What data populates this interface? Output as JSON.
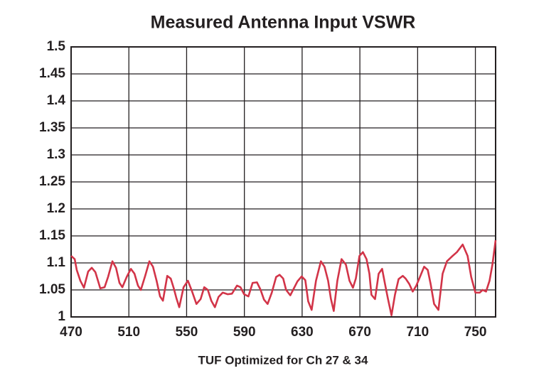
{
  "chart_data": {
    "type": "line",
    "title": "Measured Antenna Input VSWR",
    "x_label": "TUF Optimized for Ch 27 & 34",
    "xlim": [
      470,
      764
    ],
    "xticks": [
      470,
      510,
      550,
      590,
      630,
      670,
      710,
      750
    ],
    "ylim": [
      1,
      1.5
    ],
    "yticks": [
      1,
      1.05,
      1.1,
      1.15,
      1.2,
      1.25,
      1.3,
      1.35,
      1.4,
      1.45,
      1.5
    ],
    "grid": true,
    "series": [
      {
        "name": "VSWR",
        "color": "#d23448",
        "x": [
          470.0,
          472.5,
          473.9,
          476.4,
          478.9,
          481.8,
          484.3,
          486.8,
          490.2,
          493.2,
          495.6,
          498.6,
          501.1,
          503.5,
          505.5,
          508.5,
          511.4,
          513.9,
          516.3,
          518.3,
          521.3,
          524.2,
          526.7,
          529.2,
          531.6,
          533.6,
          536.6,
          539.0,
          541.0,
          543.0,
          544.9,
          547.9,
          550.9,
          553.8,
          556.8,
          559.7,
          562.2,
          564.7,
          567.1,
          569.6,
          572.1,
          575.0,
          578.5,
          581.4,
          584.9,
          587.3,
          589.8,
          592.8,
          595.7,
          598.7,
          601.1,
          603.6,
          606.1,
          609.0,
          612.0,
          614.4,
          616.9,
          618.9,
          621.8,
          624.3,
          626.8,
          629.7,
          632.2,
          634.2,
          636.6,
          639.6,
          643.0,
          645.5,
          648.0,
          649.9,
          651.9,
          654.4,
          657.3,
          660.3,
          662.8,
          665.2,
          667.2,
          669.7,
          672.1,
          674.6,
          676.6,
          678.0,
          680.5,
          683.0,
          685.4,
          687.4,
          689.4,
          691.9,
          694.3,
          696.8,
          699.7,
          701.7,
          704.2,
          706.6,
          709.1,
          711.6,
          714.5,
          717.0,
          719.0,
          721.4,
          724.4,
          727.3,
          730.3,
          733.8,
          737.2,
          741.2,
          744.6,
          747.1,
          750.0,
          753.0,
          755.0,
          757.4,
          759.8,
          761.8,
          764.0
        ],
        "values": [
          1.113,
          1.107,
          1.087,
          1.067,
          1.054,
          1.084,
          1.091,
          1.083,
          1.053,
          1.055,
          1.074,
          1.103,
          1.091,
          1.063,
          1.055,
          1.074,
          1.089,
          1.08,
          1.058,
          1.05,
          1.076,
          1.103,
          1.093,
          1.067,
          1.038,
          1.03,
          1.076,
          1.071,
          1.054,
          1.034,
          1.018,
          1.055,
          1.067,
          1.047,
          1.024,
          1.033,
          1.055,
          1.05,
          1.03,
          1.018,
          1.037,
          1.045,
          1.042,
          1.043,
          1.058,
          1.055,
          1.042,
          1.038,
          1.063,
          1.064,
          1.051,
          1.032,
          1.024,
          1.045,
          1.074,
          1.078,
          1.071,
          1.05,
          1.04,
          1.053,
          1.066,
          1.075,
          1.068,
          1.029,
          1.013,
          1.067,
          1.103,
          1.093,
          1.067,
          1.034,
          1.011,
          1.067,
          1.107,
          1.097,
          1.067,
          1.054,
          1.071,
          1.113,
          1.12,
          1.107,
          1.08,
          1.041,
          1.033,
          1.08,
          1.089,
          1.061,
          1.034,
          1.003,
          1.041,
          1.07,
          1.076,
          1.071,
          1.061,
          1.047,
          1.058,
          1.074,
          1.093,
          1.087,
          1.061,
          1.024,
          1.013,
          1.08,
          1.103,
          1.112,
          1.12,
          1.134,
          1.113,
          1.074,
          1.045,
          1.045,
          1.05,
          1.047,
          1.067,
          1.097,
          1.142
        ]
      }
    ]
  }
}
